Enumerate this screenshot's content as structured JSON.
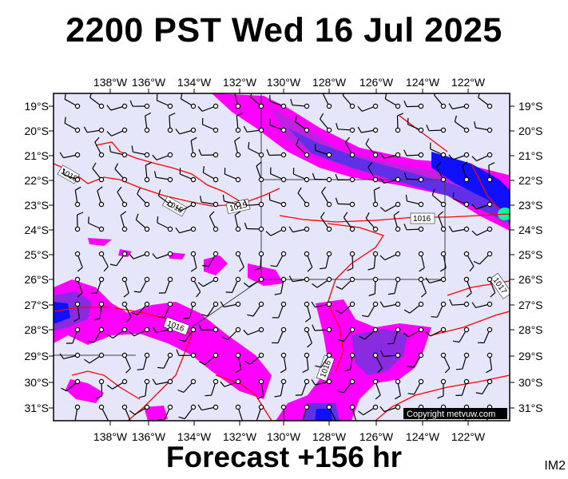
{
  "title": "2200 PST Wed 16 Jul 2025",
  "footer": "Forecast +156 hr",
  "corner_label": "IM2",
  "copyright": "Copyright metvuw.com",
  "map": {
    "lon_labels": [
      "138°W",
      "136°W",
      "134°W",
      "132°W",
      "130°W",
      "128°W",
      "126°W",
      "124°W",
      "122°W"
    ],
    "lat_labels": [
      "19°S",
      "20°S",
      "21°S",
      "22°S",
      "23°S",
      "24°S",
      "25°S",
      "26°S",
      "27°S",
      "28°S",
      "29°S",
      "30°S",
      "31°S"
    ],
    "isobar_labels": [
      "1015",
      "1015",
      "1015",
      "1016",
      "1016",
      "1016",
      "1017"
    ],
    "colors": {
      "background": "#e6e6fa",
      "isobar": "#ff0000",
      "rain_light": "#ff00ff",
      "rain_medium": "#8a2be2",
      "rain_heavy": "#0000ff",
      "rain_peak": "#00ff99"
    }
  }
}
